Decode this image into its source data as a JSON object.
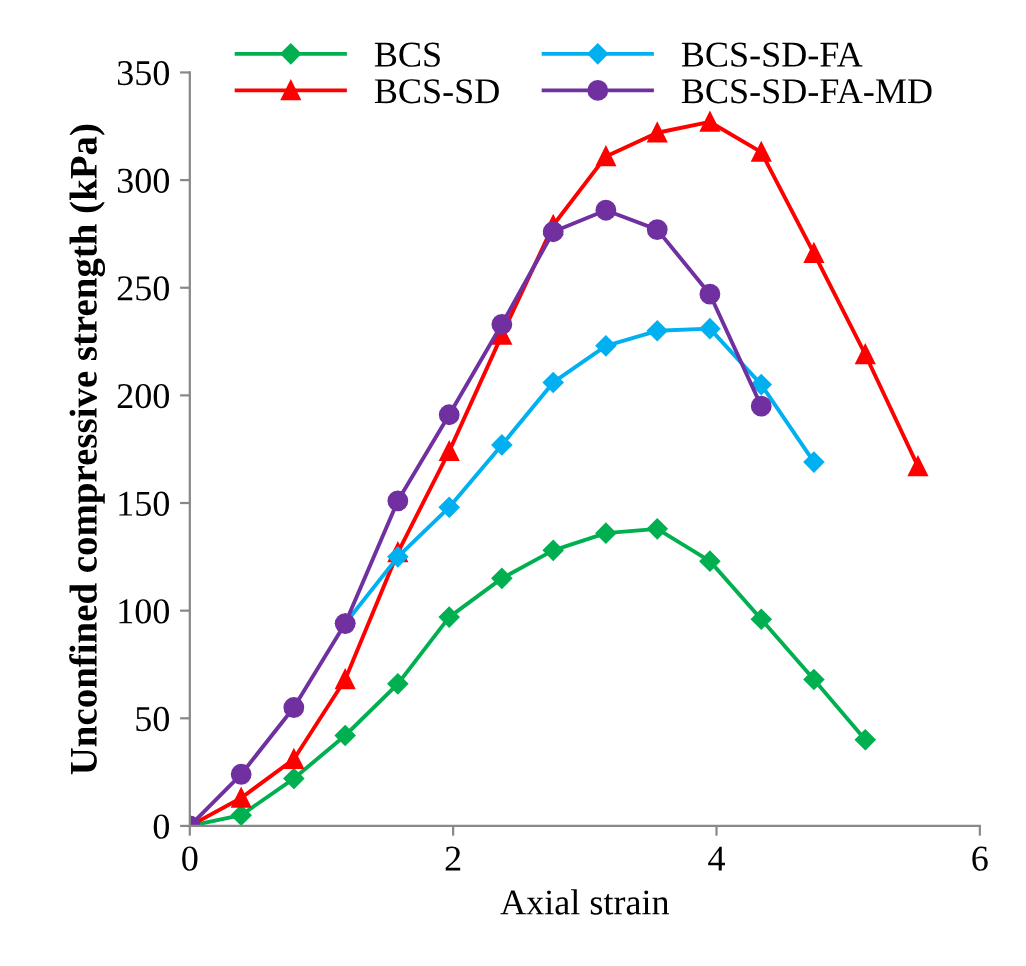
{
  "chart_data": {
    "type": "line",
    "xlabel": "Axial strain",
    "ylabel": "Unconfined compressive strength (kPa)",
    "xlim": [
      0,
      6
    ],
    "xticks": [
      0,
      2,
      4,
      6
    ],
    "ylim": [
      0,
      350
    ],
    "yticks": [
      0,
      50,
      100,
      150,
      200,
      250,
      300,
      350
    ],
    "grid": false,
    "legend": "top",
    "x": [
      0,
      0.39,
      0.79,
      1.18,
      1.58,
      1.97,
      2.37,
      2.76,
      3.16,
      3.55,
      3.95,
      4.34,
      4.74,
      5.13,
      5.53
    ],
    "series": [
      {
        "name": "BCS",
        "color": "#00b050",
        "marker": "diamond",
        "values": [
          0,
          5,
          22,
          42,
          66,
          97,
          115,
          128,
          136,
          138,
          123,
          96,
          68,
          40,
          null
        ]
      },
      {
        "name": "BCS-SD",
        "color": "#ff0000",
        "marker": "triangle",
        "values": [
          0,
          13,
          31,
          68,
          127,
          174,
          228,
          279,
          311,
          322,
          327,
          313,
          266,
          219,
          167
        ]
      },
      {
        "name": "BCS-SD-FA",
        "color": "#00b0f0",
        "marker": "diamond",
        "values": [
          null,
          null,
          null,
          94,
          125,
          148,
          177,
          206,
          223,
          230,
          231,
          205,
          169,
          null,
          null
        ]
      },
      {
        "name": "BCS-SD-FA-MD",
        "color": "#7030a0",
        "marker": "circle",
        "values": [
          0,
          24,
          55,
          94,
          151,
          191,
          233,
          276,
          286,
          277,
          247,
          195,
          null,
          null,
          null
        ]
      }
    ]
  }
}
